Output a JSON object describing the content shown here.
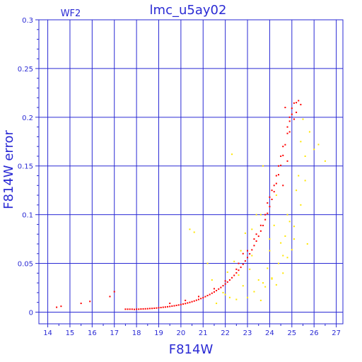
{
  "chart_data": {
    "type": "scatter",
    "title": "lmc_u5ay02",
    "tag": "WF2",
    "xlabel": "F814W",
    "ylabel": "F814W error",
    "xlim": [
      13.6,
      27.3
    ],
    "ylim": [
      -0.012,
      0.3
    ],
    "xticks": [
      "14",
      "15",
      "16",
      "17",
      "18",
      "19",
      "20",
      "21",
      "22",
      "23",
      "24",
      "25",
      "26",
      "27"
    ],
    "yticks": [
      "0",
      "0.05",
      "0.1",
      "0.15",
      "0.2",
      "0.25",
      "0.3"
    ],
    "grid": true,
    "colors": {
      "axis": "#2a2ad4",
      "primary": "#ff0000",
      "secondary": "#ffe600"
    },
    "series": [
      {
        "color": "#ff0000",
        "points": [
          [
            14.4,
            0.005
          ],
          [
            14.6,
            0.006
          ],
          [
            15.5,
            0.009
          ],
          [
            15.9,
            0.011
          ],
          [
            16.8,
            0.016
          ],
          [
            17.0,
            0.021
          ],
          [
            17.5,
            0.003
          ],
          [
            17.6,
            0.003
          ],
          [
            17.7,
            0.003
          ],
          [
            17.8,
            0.003
          ],
          [
            17.9,
            0.0028
          ],
          [
            18.0,
            0.003
          ],
          [
            18.1,
            0.003
          ],
          [
            18.2,
            0.0032
          ],
          [
            18.3,
            0.0033
          ],
          [
            18.4,
            0.0034
          ],
          [
            18.5,
            0.0035
          ],
          [
            18.6,
            0.0037
          ],
          [
            18.7,
            0.0038
          ],
          [
            18.8,
            0.004
          ],
          [
            18.9,
            0.0042
          ],
          [
            19.0,
            0.0045
          ],
          [
            19.1,
            0.0047
          ],
          [
            19.2,
            0.005
          ],
          [
            19.3,
            0.0052
          ],
          [
            19.4,
            0.0055
          ],
          [
            19.5,
            0.0058
          ],
          [
            19.6,
            0.0062
          ],
          [
            19.7,
            0.0065
          ],
          [
            19.8,
            0.0069
          ],
          [
            19.9,
            0.0073
          ],
          [
            20.0,
            0.0078
          ],
          [
            20.1,
            0.0083
          ],
          [
            20.2,
            0.0088
          ],
          [
            20.3,
            0.0094
          ],
          [
            20.4,
            0.01
          ],
          [
            20.5,
            0.0107
          ],
          [
            20.6,
            0.0114
          ],
          [
            20.7,
            0.0122
          ],
          [
            20.8,
            0.013
          ],
          [
            20.9,
            0.0139
          ],
          [
            21.0,
            0.0148
          ],
          [
            21.1,
            0.0159
          ],
          [
            21.2,
            0.017
          ],
          [
            21.3,
            0.0181
          ],
          [
            21.4,
            0.0194
          ],
          [
            21.5,
            0.0207
          ],
          [
            21.6,
            0.0221
          ],
          [
            21.7,
            0.0237
          ],
          [
            21.8,
            0.0253
          ],
          [
            21.9,
            0.0271
          ],
          [
            22.0,
            0.0289
          ],
          [
            22.1,
            0.0309
          ],
          [
            22.2,
            0.033
          ],
          [
            22.3,
            0.0353
          ],
          [
            22.4,
            0.0377
          ],
          [
            22.5,
            0.0403
          ],
          [
            22.6,
            0.043
          ],
          [
            22.7,
            0.046
          ],
          [
            22.8,
            0.0491
          ],
          [
            22.9,
            0.0525
          ],
          [
            23.0,
            0.056
          ],
          [
            23.1,
            0.0598
          ],
          [
            23.2,
            0.0639
          ],
          [
            23.3,
            0.0683
          ],
          [
            23.4,
            0.0729
          ],
          [
            23.5,
            0.0779
          ],
          [
            23.6,
            0.0832
          ],
          [
            23.7,
            0.0889
          ],
          [
            23.8,
            0.0949
          ],
          [
            23.9,
            0.1014
          ],
          [
            24.0,
            0.1083
          ],
          [
            24.1,
            0.1157
          ],
          [
            24.2,
            0.1236
          ],
          [
            24.3,
            0.132
          ],
          [
            24.4,
            0.141
          ],
          [
            24.5,
            0.1506
          ],
          [
            24.6,
            0.1608
          ],
          [
            24.7,
            0.1718
          ],
          [
            24.8,
            0.1834
          ],
          [
            24.9,
            0.1959
          ],
          [
            25.0,
            0.2092
          ],
          [
            25.1,
            0.2145
          ],
          [
            25.2,
            0.215
          ],
          [
            25.3,
            0.217
          ],
          [
            25.4,
            0.213
          ],
          [
            19.5,
            0.009
          ],
          [
            20.2,
            0.012
          ],
          [
            20.8,
            0.016
          ],
          [
            21.5,
            0.024
          ],
          [
            22.0,
            0.032
          ],
          [
            22.5,
            0.044
          ],
          [
            22.8,
            0.06
          ],
          [
            23.0,
            0.063
          ],
          [
            23.3,
            0.075
          ],
          [
            23.6,
            0.089
          ],
          [
            23.8,
            0.1
          ],
          [
            24.0,
            0.118
          ],
          [
            24.2,
            0.13
          ],
          [
            24.4,
            0.15
          ],
          [
            24.6,
            0.17
          ],
          [
            24.8,
            0.19
          ],
          [
            24.9,
            0.2
          ],
          [
            25.0,
            0.203
          ],
          [
            24.7,
            0.21
          ],
          [
            24.5,
            0.16
          ],
          [
            24.3,
            0.14
          ],
          [
            24.1,
            0.125
          ],
          [
            23.9,
            0.112
          ],
          [
            23.4,
            0.08
          ],
          [
            22.6,
            0.05
          ],
          [
            24.9,
            0.185
          ],
          [
            25.1,
            0.198
          ],
          [
            25.2,
            0.205
          ],
          [
            24.6,
            0.13
          ],
          [
            24.8,
            0.155
          ]
        ]
      },
      {
        "color": "#ffe600",
        "points": [
          [
            20.4,
            0.085
          ],
          [
            20.6,
            0.082
          ],
          [
            21.2,
            0.05
          ],
          [
            21.4,
            0.033
          ],
          [
            21.6,
            0.009
          ],
          [
            21.9,
            0.02
          ],
          [
            22.0,
            0.018
          ],
          [
            22.1,
            0.041
          ],
          [
            22.2,
            0.015
          ],
          [
            22.3,
            0.162
          ],
          [
            22.4,
            0.052
          ],
          [
            22.5,
            0.013
          ],
          [
            22.6,
            0.038
          ],
          [
            22.7,
            0.063
          ],
          [
            22.8,
            0.027
          ],
          [
            22.9,
            0.081
          ],
          [
            23.0,
            0.015
          ],
          [
            23.1,
            0.044
          ],
          [
            23.2,
            0.058
          ],
          [
            23.3,
            0.021
          ],
          [
            23.4,
            0.1
          ],
          [
            23.5,
            0.033
          ],
          [
            23.6,
            0.012
          ],
          [
            23.7,
            0.03
          ],
          [
            23.8,
            0.026
          ],
          [
            23.9,
            0.045
          ],
          [
            24.0,
            0.063
          ],
          [
            24.1,
            0.034
          ],
          [
            24.2,
            0.089
          ],
          [
            24.3,
            0.028
          ],
          [
            24.4,
            0.05
          ],
          [
            24.5,
            0.071
          ],
          [
            24.6,
            0.04
          ],
          [
            24.7,
            0.078
          ],
          [
            24.8,
            0.056
          ],
          [
            24.9,
            0.093
          ],
          [
            25.0,
            0.064
          ],
          [
            25.1,
            0.088
          ],
          [
            25.2,
            0.125
          ],
          [
            25.3,
            0.14
          ],
          [
            25.4,
            0.175
          ],
          [
            25.5,
            0.198
          ],
          [
            25.6,
            0.16
          ],
          [
            25.7,
            0.07
          ],
          [
            25.8,
            0.185
          ],
          [
            26.0,
            0.167
          ],
          [
            26.2,
            0.172
          ],
          [
            26.5,
            0.155
          ],
          [
            23.2,
            0.085
          ],
          [
            23.6,
            0.1
          ],
          [
            24.1,
            0.035
          ],
          [
            24.6,
            0.058
          ],
          [
            25.1,
            0.075
          ],
          [
            24.3,
            0.12
          ],
          [
            23.7,
            0.15
          ],
          [
            24.0,
            0.075
          ],
          [
            24.8,
            0.1
          ],
          [
            25.4,
            0.11
          ],
          [
            25.6,
            0.135
          ]
        ]
      }
    ]
  }
}
